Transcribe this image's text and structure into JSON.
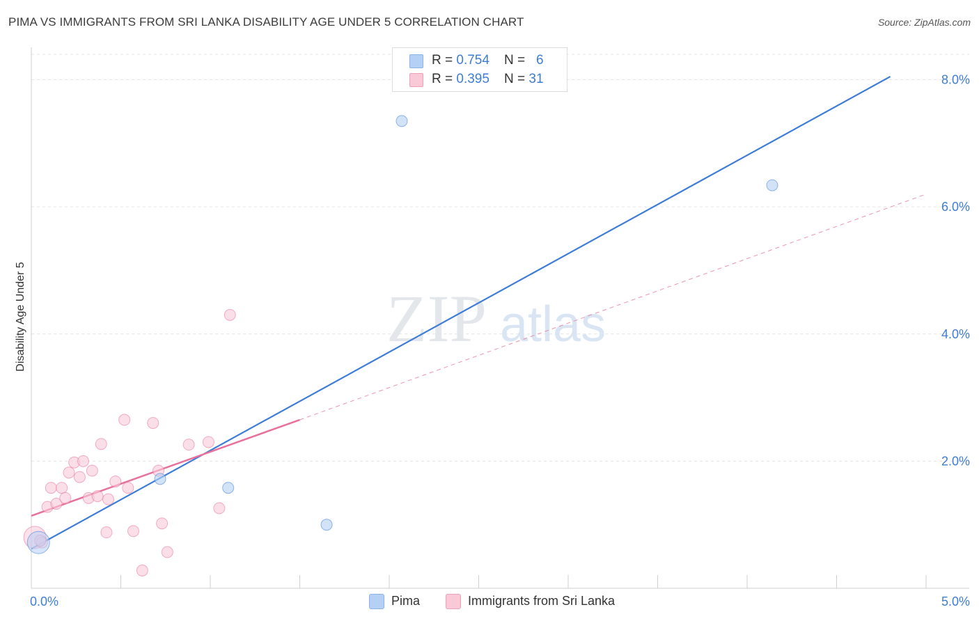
{
  "title": "PIMA VS IMMIGRANTS FROM SRI LANKA DISABILITY AGE UNDER 5 CORRELATION CHART",
  "source": "Source: ZipAtlas.com",
  "watermark": {
    "zip": "ZIP",
    "atlas": "atlas"
  },
  "legend": {
    "rows": [
      {
        "r_label": "R = ",
        "r_value": "0.754",
        "n_label": "N = ",
        "n_value": "6",
        "swatch_color": "#b4d0f4",
        "swatch_border": "#8ab2e6"
      },
      {
        "r_label": "R = ",
        "r_value": "0.395",
        "n_label": "N = ",
        "n_value": "31",
        "swatch_color": "#f9c9d8",
        "swatch_border": "#ee9fb9"
      }
    ]
  },
  "bottom_legend": [
    {
      "label": "Pima",
      "color": "#b4d0f4",
      "border": "#8ab2e6"
    },
    {
      "label": "Immigrants from Sri Lanka",
      "color": "#f9c9d8",
      "border": "#ee9fb9"
    }
  ],
  "chart_data": {
    "type": "scatter",
    "title": "PIMA VS IMMIGRANTS FROM SRI LANKA DISABILITY AGE UNDER 5 CORRELATION CHART",
    "xlabel": "",
    "ylabel": "Disability Age Under 5",
    "xlim": [
      0,
      5.0
    ],
    "ylim": [
      0,
      8.4
    ],
    "x_tick_labels": [
      "0.0%",
      "5.0%"
    ],
    "x_tick_label_values": [
      0,
      5.0
    ],
    "x_minor_ticks": [
      0.5,
      1.0,
      1.5,
      2.0,
      2.5,
      3.0,
      3.5,
      4.0,
      4.5,
      5.0
    ],
    "y_ticks": [
      2.0,
      4.0,
      6.0,
      8.0
    ],
    "y_tick_labels": [
      "2.0%",
      "4.0%",
      "6.0%",
      "8.0%"
    ],
    "grid": true,
    "legend_position": "top-center",
    "series": [
      {
        "name": "Pima",
        "color": "#3d7dd8",
        "fill": "#b4d0f4",
        "points": [
          {
            "x": 0.04,
            "y": 0.72,
            "size": "large"
          },
          {
            "x": 0.72,
            "y": 1.72
          },
          {
            "x": 1.1,
            "y": 1.58
          },
          {
            "x": 1.65,
            "y": 1.0
          },
          {
            "x": 2.07,
            "y": 7.35
          },
          {
            "x": 4.14,
            "y": 6.34
          }
        ],
        "trend": {
          "x0": 0.0,
          "y0": 0.62,
          "x1": 4.8,
          "y1": 8.05,
          "style": "solid"
        }
      },
      {
        "name": "Immigrants from Sri Lanka",
        "color": "#e8709a",
        "fill": "#f9c9d8",
        "points": [
          {
            "x": 0.02,
            "y": 0.8,
            "size": "large"
          },
          {
            "x": 0.06,
            "y": 0.72
          },
          {
            "x": 0.09,
            "y": 1.28
          },
          {
            "x": 0.11,
            "y": 1.58
          },
          {
            "x": 0.14,
            "y": 1.33
          },
          {
            "x": 0.17,
            "y": 1.58
          },
          {
            "x": 0.19,
            "y": 1.42
          },
          {
            "x": 0.21,
            "y": 1.82
          },
          {
            "x": 0.24,
            "y": 1.98
          },
          {
            "x": 0.27,
            "y": 1.75
          },
          {
            "x": 0.29,
            "y": 2.0
          },
          {
            "x": 0.32,
            "y": 1.42
          },
          {
            "x": 0.34,
            "y": 1.85
          },
          {
            "x": 0.37,
            "y": 1.45
          },
          {
            "x": 0.39,
            "y": 2.27
          },
          {
            "x": 0.42,
            "y": 0.88
          },
          {
            "x": 0.43,
            "y": 1.4
          },
          {
            "x": 0.47,
            "y": 1.68
          },
          {
            "x": 0.52,
            "y": 2.65
          },
          {
            "x": 0.54,
            "y": 1.58
          },
          {
            "x": 0.57,
            "y": 0.9
          },
          {
            "x": 0.62,
            "y": 0.28
          },
          {
            "x": 0.68,
            "y": 2.6
          },
          {
            "x": 0.71,
            "y": 1.85
          },
          {
            "x": 0.73,
            "y": 1.02
          },
          {
            "x": 0.76,
            "y": 0.57
          },
          {
            "x": 0.88,
            "y": 2.26
          },
          {
            "x": 0.99,
            "y": 2.3
          },
          {
            "x": 1.05,
            "y": 1.26
          },
          {
            "x": 1.11,
            "y": 4.3
          },
          {
            "x": 0.05,
            "y": 0.75
          }
        ],
        "trend": {
          "x0": 0.0,
          "y0": 1.14,
          "x1": 1.5,
          "y1": 2.65,
          "style": "solid"
        },
        "trend_extension": {
          "x0": 1.5,
          "y0": 2.65,
          "x1": 5.0,
          "y1": 6.2,
          "style": "dashed"
        }
      }
    ]
  }
}
